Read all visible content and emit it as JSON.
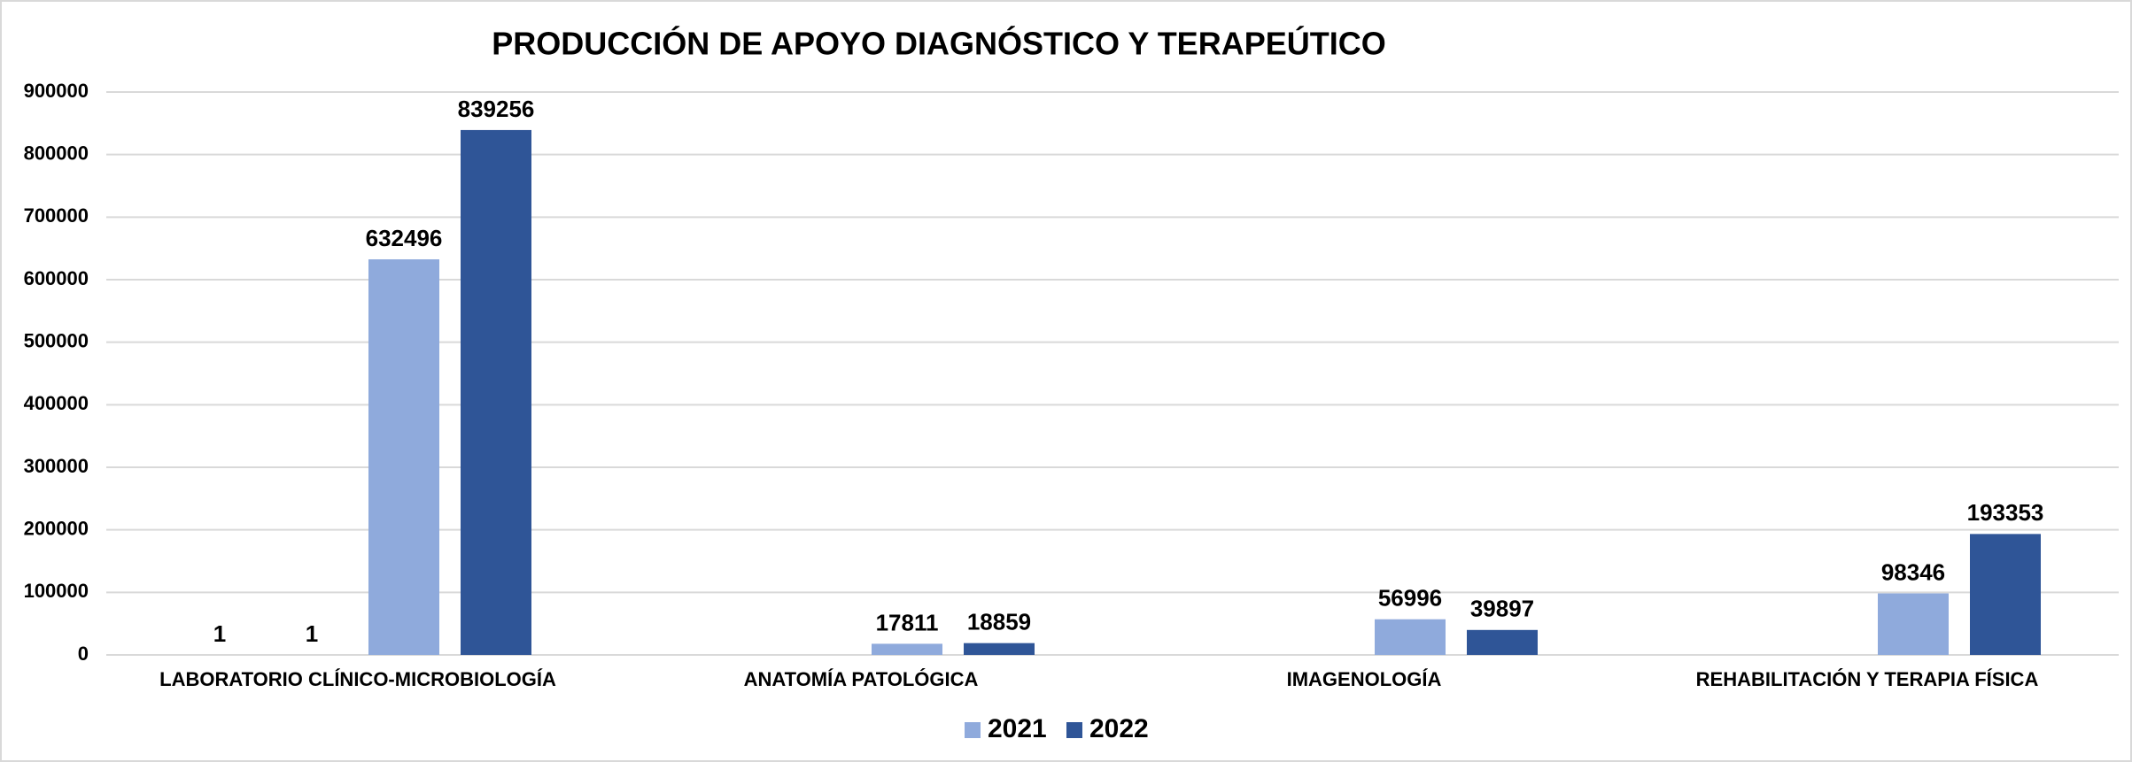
{
  "chart_data": {
    "type": "bar",
    "title": "PRODUCCIÓN DE APOYO DIAGNÓSTICO Y TERAPEÚTICO",
    "categories": [
      "LABORATORIO CLÍNICO-MICROBIOLOGÍA",
      "ANATOMÍA PATOLÓGICA",
      "IMAGENOLOGÍA",
      "REHABILITACIÓN Y TERAPIA FÍSICA"
    ],
    "series": [
      {
        "color": "#8faadc",
        "values": [
          1,
          null,
          null,
          null
        ]
      },
      {
        "color": "#2f5597",
        "values": [
          1,
          null,
          null,
          null
        ]
      },
      {
        "name": "2021",
        "color": "#8faadc",
        "values": [
          632496,
          17811,
          56996,
          98346
        ]
      },
      {
        "name": "2022",
        "color": "#2f5597",
        "values": [
          839256,
          18859,
          39897,
          193353
        ]
      }
    ],
    "ylim": [
      0,
      900000
    ],
    "yticks": [
      0,
      100000,
      200000,
      300000,
      400000,
      500000,
      600000,
      700000,
      800000,
      900000
    ],
    "grid": true,
    "legend": "bottom"
  }
}
